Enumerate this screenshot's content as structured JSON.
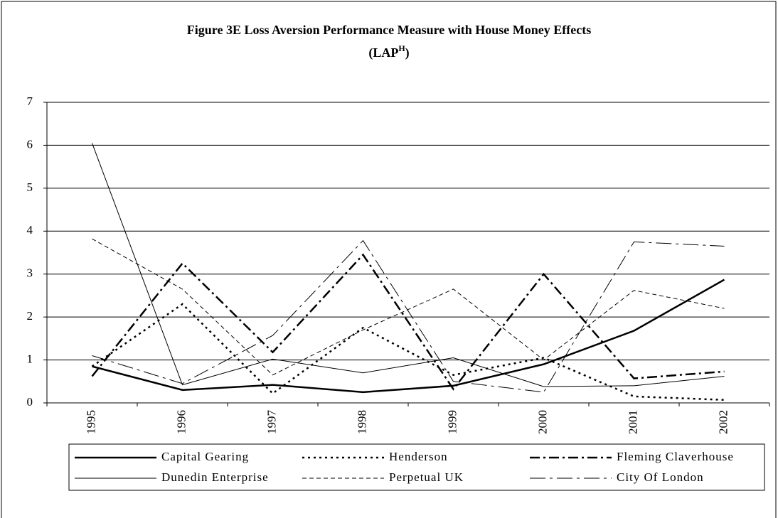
{
  "chart_data": {
    "type": "line",
    "title": "Figure 3E  Loss Aversion Performance Measure with House Money Effects",
    "subtitle": "(LAP",
    "subtitle_superscript": "H",
    "subtitle_end": ")",
    "categories": [
      "1995",
      "1996",
      "1997",
      "1998",
      "1999",
      "2000",
      "2001",
      "2002"
    ],
    "series": [
      {
        "name": "Capital Gearing",
        "color": "#000000",
        "width": 2.5,
        "dash": "",
        "values": [
          0.85,
          0.3,
          0.42,
          0.25,
          0.4,
          0.9,
          1.68,
          2.87
        ]
      },
      {
        "name": "Henderson",
        "color": "#000000",
        "width": 2.5,
        "dash": "3 5",
        "values": [
          0.85,
          2.3,
          0.22,
          1.75,
          0.65,
          1.05,
          0.15,
          0.07
        ]
      },
      {
        "name": "Fleming Claverhouse",
        "color": "#000000",
        "width": 2.5,
        "dash": "14 5 3 5",
        "values": [
          0.62,
          3.25,
          1.18,
          3.45,
          0.32,
          3.0,
          0.57,
          0.73
        ]
      },
      {
        "name": "Dunedin Enterprise",
        "color": "#000000",
        "width": 1,
        "dash": "",
        "values": [
          6.05,
          0.42,
          1.02,
          0.7,
          1.05,
          0.38,
          0.4,
          0.62
        ]
      },
      {
        "name": "Perpetual UK",
        "color": "#000000",
        "width": 1,
        "dash": "6 4",
        "values": [
          3.82,
          2.65,
          0.65,
          1.7,
          2.65,
          1.0,
          2.62,
          2.2
        ]
      },
      {
        "name": "City Of London",
        "color": "#000000",
        "width": 1,
        "dash": "22 6 4 6",
        "values": [
          1.1,
          0.45,
          1.57,
          3.78,
          0.5,
          0.25,
          3.75,
          3.65
        ]
      }
    ],
    "ylim": [
      0,
      7
    ],
    "yticks": [
      0,
      1,
      2,
      3,
      4,
      5,
      6,
      7
    ],
    "grid": true
  }
}
